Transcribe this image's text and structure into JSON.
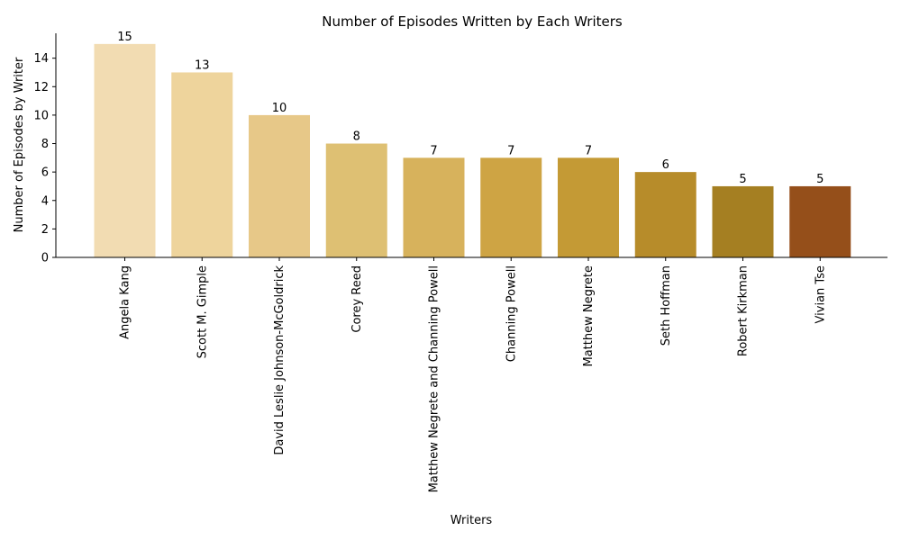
{
  "chart_data": {
    "type": "bar",
    "title": "Number of Episodes Written by Each Writers",
    "xlabel": "Writers",
    "ylabel": "Number of Episodes by Writer",
    "categories": [
      "Angela Kang",
      "Scott M. Gimple",
      "David Leslie Johnson-McGoldrick",
      "Corey Reed",
      "Matthew Negrete and Channing Powell",
      "Channing Powell",
      "Matthew Negrete",
      "Seth Hoffman",
      "Robert Kirkman",
      "Vivian Tse"
    ],
    "values": [
      15,
      13,
      10,
      8,
      7,
      7,
      7,
      6,
      5,
      5
    ],
    "colors": [
      "#f2dcb2",
      "#eed49c",
      "#e7c888",
      "#dec073",
      "#d7b25c",
      "#cea444",
      "#c49a35",
      "#b78c2a",
      "#a57f22",
      "#954f1a"
    ],
    "ylim": [
      0,
      15.75
    ],
    "yticks": [
      0,
      2,
      4,
      6,
      8,
      10,
      12,
      14
    ],
    "grid": false,
    "legend": "none"
  }
}
